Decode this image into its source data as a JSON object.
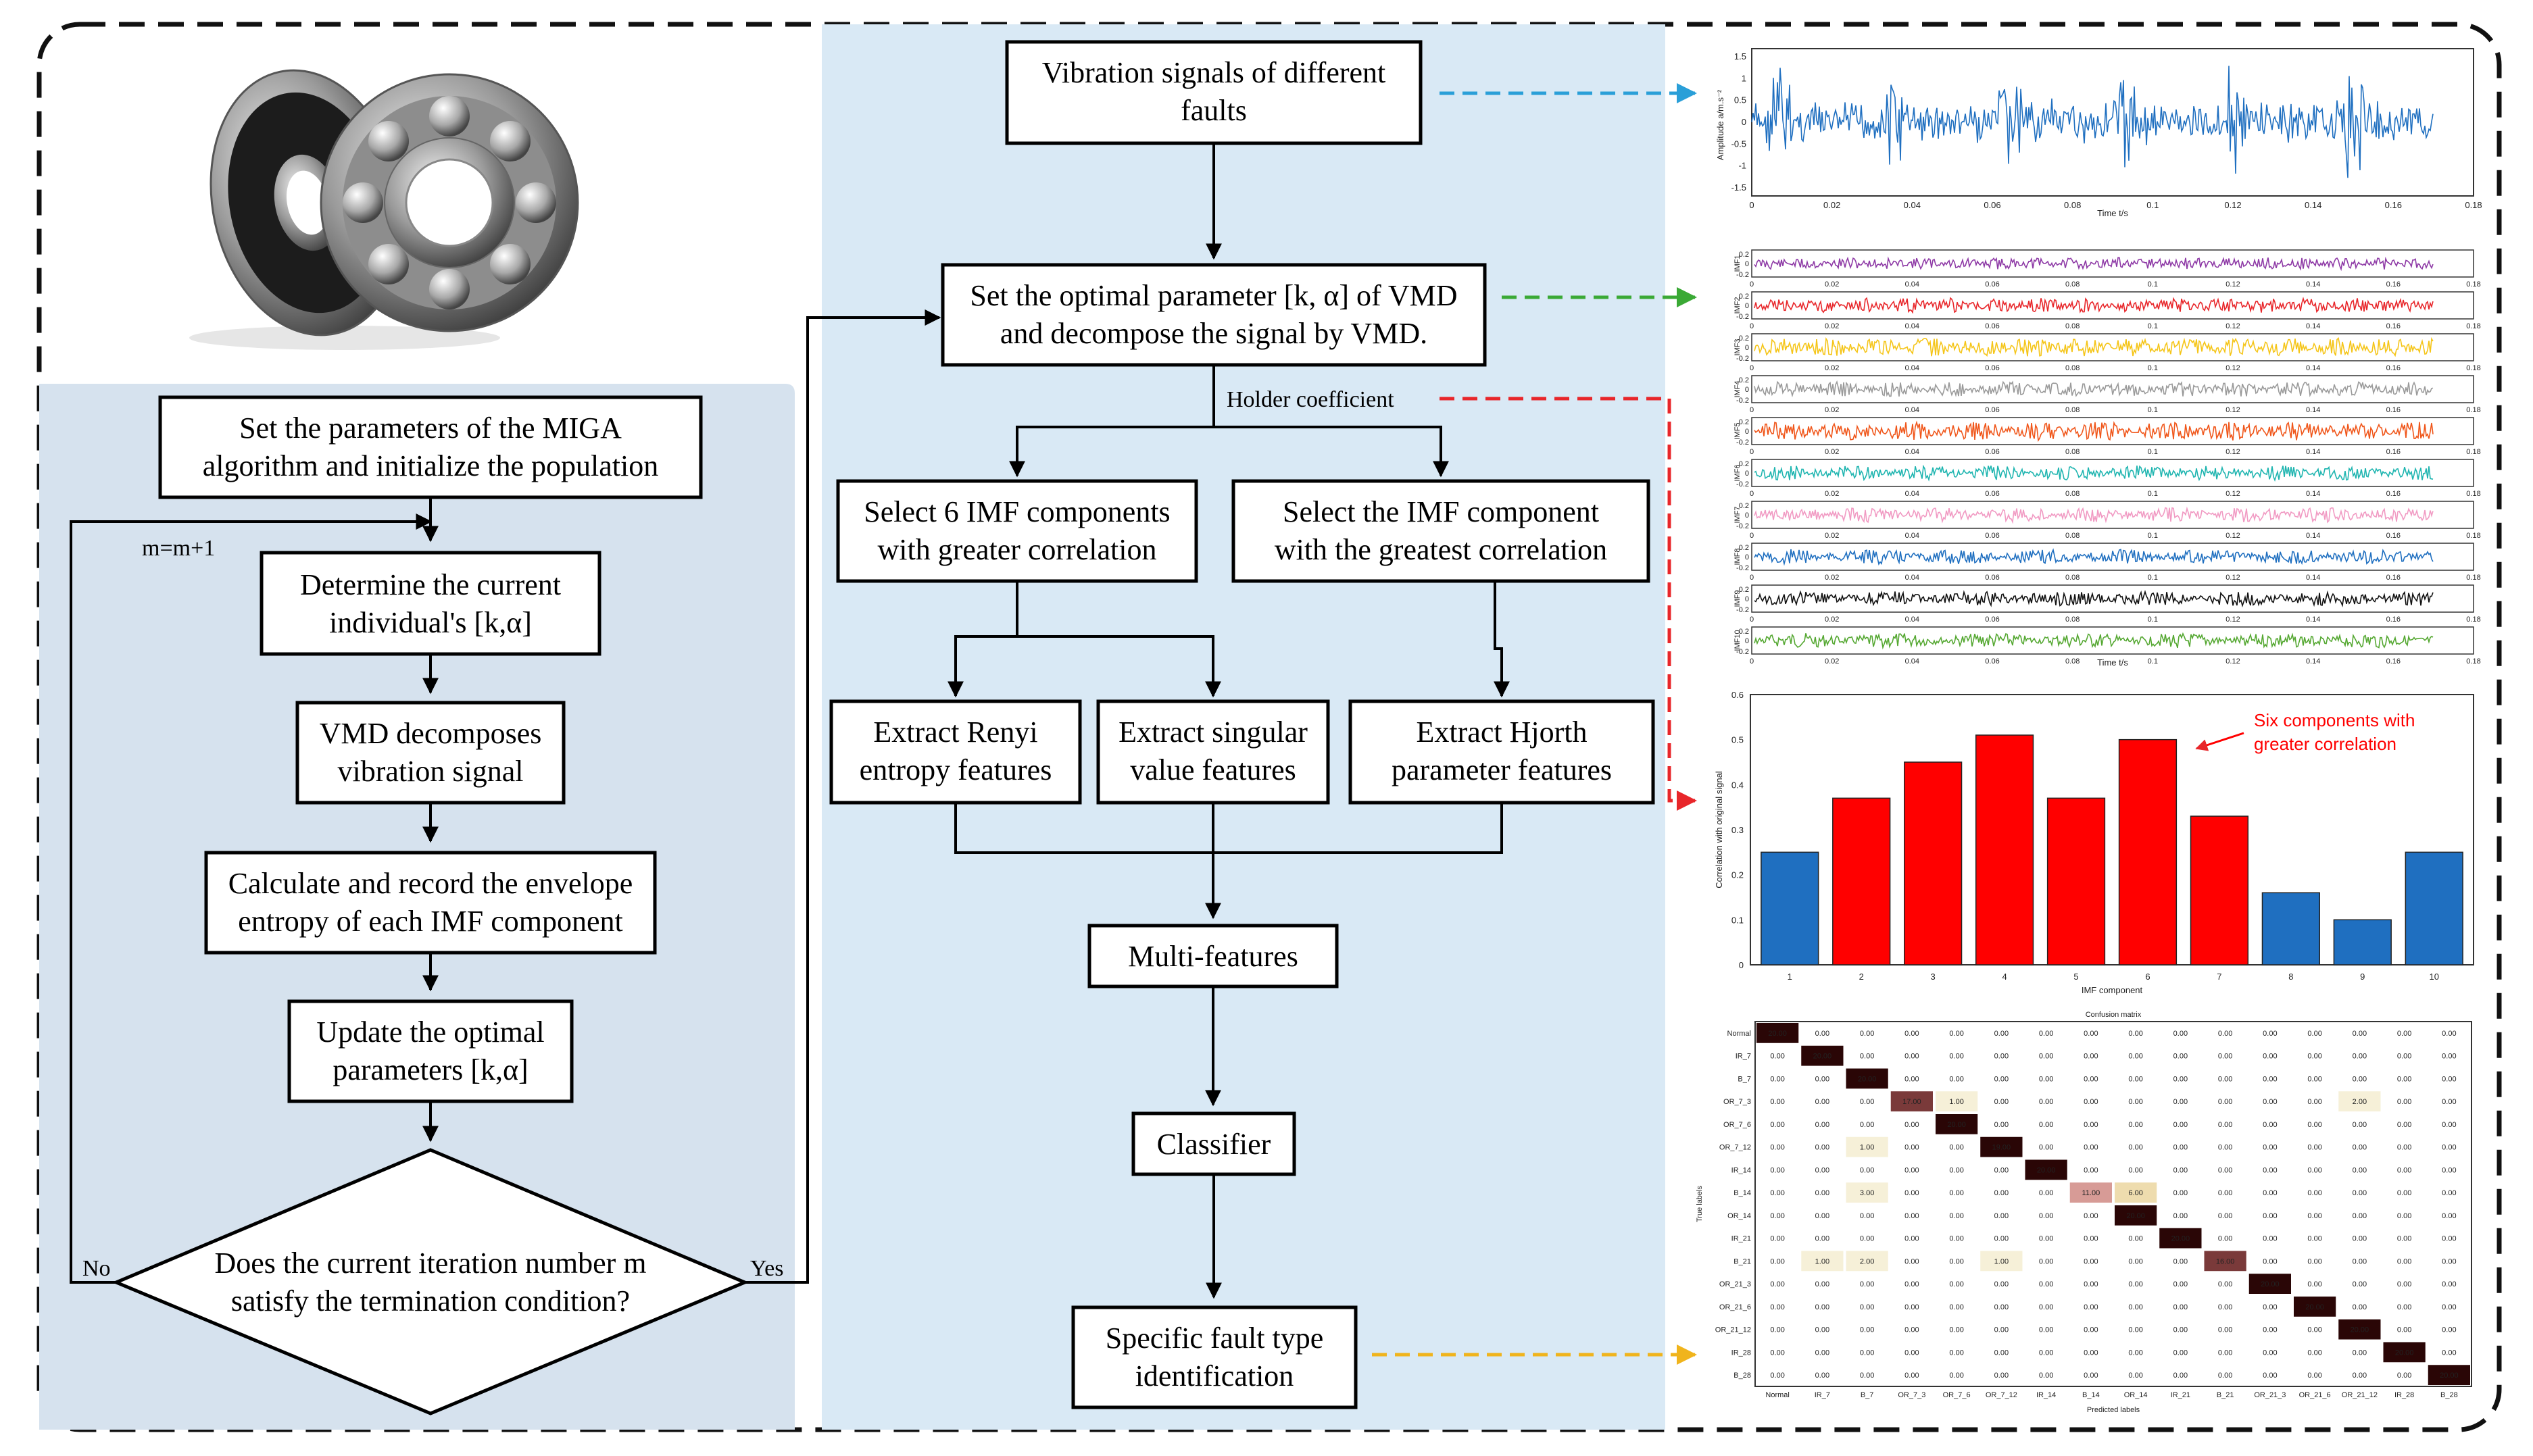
{
  "left_flow": {
    "init": [
      "Set the parameters of the MIGA",
      "algorithm and initialize the population"
    ],
    "determine": [
      "Determine the current",
      "individual's [k,α]"
    ],
    "vmd": [
      "VMD decomposes",
      "vibration signal"
    ],
    "calc": [
      "Calculate and record the envelope",
      "entropy of each IMF component"
    ],
    "update": [
      "Update the optimal",
      "parameters [k,α]"
    ],
    "decision": [
      "Does the current iteration number m",
      "satisfy the termination condition?"
    ],
    "loop_label": "m=m+1",
    "no_label": "No",
    "yes_label": "Yes"
  },
  "center_flow": {
    "signals": [
      "Vibration signals of different",
      "faults"
    ],
    "optimal": [
      "Set the optimal parameter [k, α] of VMD",
      "and decompose the signal by VMD."
    ],
    "holder": "Holder coefficient",
    "select6": [
      "Select 6 IMF components",
      "with greater correlation"
    ],
    "select1": [
      "Select the IMF component",
      "with the greatest correlation"
    ],
    "renyi": [
      "Extract Renyi",
      "entropy features"
    ],
    "singular": [
      "Extract singular",
      "value features"
    ],
    "hjorth": [
      "Extract Hjorth",
      "parameter features"
    ],
    "multi": "Multi-features",
    "classifier": "Classifier",
    "specific": [
      "Specific fault type",
      "identification"
    ]
  },
  "signal_plot": {
    "ylabel": "Amplitude a/m.s⁻²",
    "xlabel": "Time t/s",
    "yticks": [
      "1.5",
      "1",
      "0.5",
      "0",
      "-0.5",
      "-1",
      "-1.5"
    ],
    "xticks": [
      "0",
      "0.02",
      "0.04",
      "0.06",
      "0.08",
      "0.1",
      "0.12",
      "0.14",
      "0.16",
      "0.18"
    ]
  },
  "imf_plot": {
    "labels": [
      "IMF1",
      "IMF2",
      "IMF3",
      "IMF4",
      "IMF5",
      "IMF6",
      "IMF7",
      "IMF8",
      "IMF9",
      "IMF10"
    ],
    "colors": [
      "#8e3aa6",
      "#e8262a",
      "#f5c518",
      "#9a9a9a",
      "#f0561a",
      "#1fb5b0",
      "#f19ac3",
      "#1f6fc0",
      "#111111",
      "#55a832"
    ],
    "xlabel": "Time t/s",
    "xticks": [
      "0",
      "0.02",
      "0.04",
      "0.06",
      "0.08",
      "0.1",
      "0.12",
      "0.14",
      "0.16",
      "0.18"
    ]
  },
  "chart_data": {
    "type": "bar",
    "categories": [
      "1",
      "2",
      "3",
      "4",
      "5",
      "6",
      "7",
      "8",
      "9",
      "10"
    ],
    "values": [
      0.25,
      0.37,
      0.45,
      0.51,
      0.37,
      0.5,
      0.33,
      0.16,
      0.1,
      0.25
    ],
    "highlight": [
      false,
      true,
      true,
      true,
      true,
      true,
      true,
      false,
      false,
      false
    ],
    "xlabel": "IMF component",
    "ylabel": "Correlation with original signal",
    "ylim": [
      0,
      0.6
    ],
    "yticks": [
      "0",
      "0.1",
      "0.2",
      "0.3",
      "0.4",
      "0.5",
      "0.6"
    ],
    "annotation": [
      "Six components with",
      "greater correlation"
    ],
    "colors": {
      "normal": "#1f6fc0",
      "highlight": "#ff0000"
    }
  },
  "confusion": {
    "title": "Confusion matrix",
    "xlabel": "Predicted labels",
    "ylabel": "True labels",
    "labels": [
      "Normal",
      "IR_7",
      "B_7",
      "OR_7_3",
      "OR_7_6",
      "OR_7_12",
      "IR_14",
      "B_14",
      "OR_14",
      "IR_21",
      "B_21",
      "OR_21_3",
      "OR_21_6",
      "OR_21_12",
      "IR_28",
      "B_28"
    ],
    "matrix": [
      [
        20,
        0,
        0,
        0,
        0,
        0,
        0,
        0,
        0,
        0,
        0,
        0,
        0,
        0,
        0,
        0
      ],
      [
        0,
        20,
        0,
        0,
        0,
        0,
        0,
        0,
        0,
        0,
        0,
        0,
        0,
        0,
        0,
        0
      ],
      [
        0,
        0,
        20,
        0,
        0,
        0,
        0,
        0,
        0,
        0,
        0,
        0,
        0,
        0,
        0,
        0
      ],
      [
        0,
        0,
        0,
        17,
        1,
        0,
        0,
        0,
        0,
        0,
        0,
        0,
        0,
        2,
        0,
        0
      ],
      [
        0,
        0,
        0,
        0,
        20,
        0,
        0,
        0,
        0,
        0,
        0,
        0,
        0,
        0,
        0,
        0
      ],
      [
        0,
        0,
        1,
        0,
        0,
        19,
        0,
        0,
        0,
        0,
        0,
        0,
        0,
        0,
        0,
        0
      ],
      [
        0,
        0,
        0,
        0,
        0,
        0,
        20,
        0,
        0,
        0,
        0,
        0,
        0,
        0,
        0,
        0
      ],
      [
        0,
        0,
        3,
        0,
        0,
        0,
        0,
        11,
        6,
        0,
        0,
        0,
        0,
        0,
        0,
        0
      ],
      [
        0,
        0,
        0,
        0,
        0,
        0,
        0,
        0,
        20,
        0,
        0,
        0,
        0,
        0,
        0,
        0
      ],
      [
        0,
        0,
        0,
        0,
        0,
        0,
        0,
        0,
        0,
        20,
        0,
        0,
        0,
        0,
        0,
        0
      ],
      [
        0,
        1,
        2,
        0,
        0,
        1,
        0,
        0,
        0,
        0,
        16,
        0,
        0,
        0,
        0,
        0
      ],
      [
        0,
        0,
        0,
        0,
        0,
        0,
        0,
        0,
        0,
        0,
        0,
        20,
        0,
        0,
        0,
        0
      ],
      [
        0,
        0,
        0,
        0,
        0,
        0,
        0,
        0,
        0,
        0,
        0,
        0,
        20,
        0,
        0,
        0
      ],
      [
        0,
        0,
        0,
        0,
        0,
        0,
        0,
        0,
        0,
        0,
        0,
        0,
        0,
        20,
        0,
        0
      ],
      [
        0,
        0,
        0,
        0,
        0,
        0,
        0,
        0,
        0,
        0,
        0,
        0,
        0,
        0,
        20,
        0
      ],
      [
        0,
        0,
        0,
        0,
        0,
        0,
        0,
        0,
        0,
        0,
        0,
        0,
        0,
        0,
        0,
        20
      ]
    ]
  },
  "colors": {
    "left_panel": "#d6e2ee",
    "center_panel": "#d9e9f5",
    "arrow_blue": "#2a9fd8",
    "arrow_green": "#3aa935",
    "arrow_red": "#e8262a",
    "arrow_yellow": "#f0b41c"
  }
}
